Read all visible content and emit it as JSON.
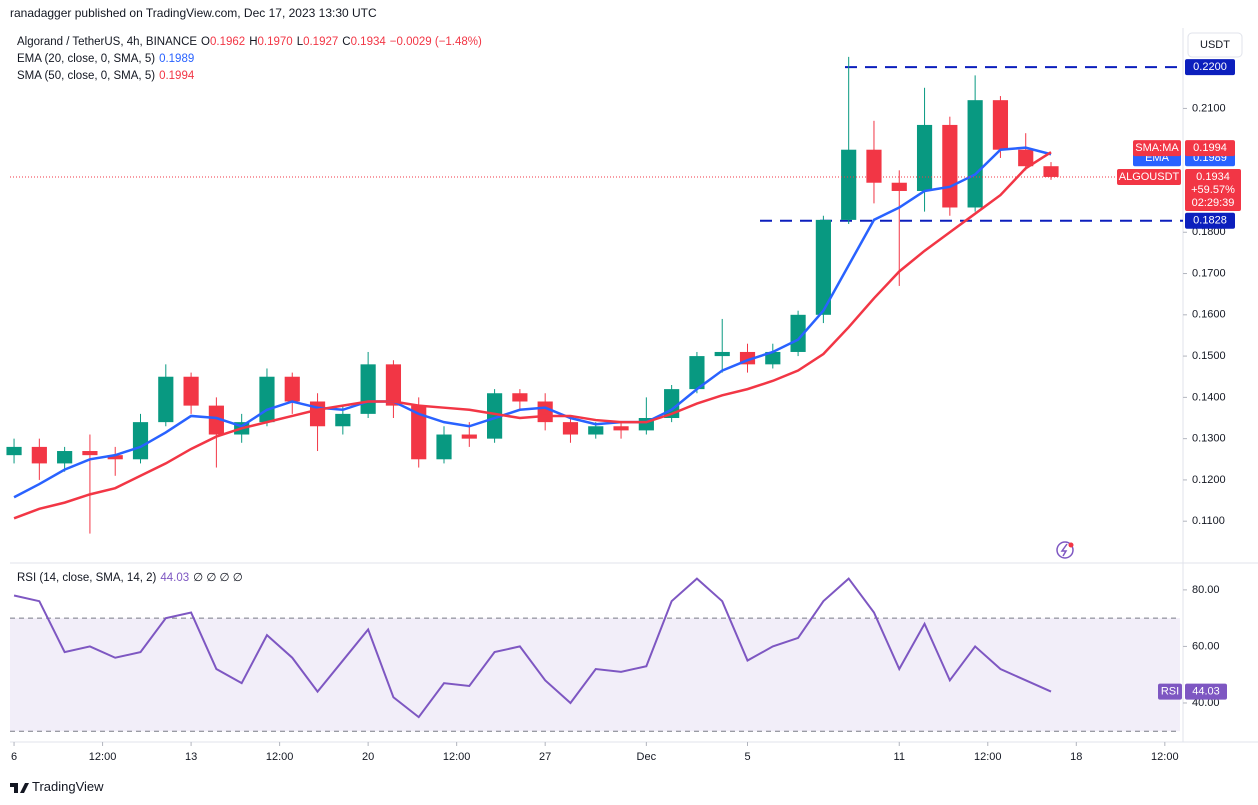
{
  "header": {
    "byline": "ranadagger published on TradingView.com, Dec 17, 2023 13:30 UTC"
  },
  "footer": {
    "brand": "TradingView"
  },
  "chart_data": [
    {
      "type": "candlestick",
      "title": "Algorand / TetherUS, 4h, BINANCE",
      "ohlc_legend": [
        {
          "key": "O",
          "text": "0.1962"
        },
        {
          "key": "H",
          "text": "0.1970"
        },
        {
          "key": "L",
          "text": "0.1927"
        },
        {
          "key": "C",
          "text": "0.1934"
        }
      ],
      "change": "−0.0029 (−1.48%)",
      "currency": "USDT",
      "symbol_tag": "ALGOUSDT",
      "change_pct": "+59.57%",
      "countdown": "02:29:39",
      "up_color": "#089981",
      "down_color": "#f23645",
      "x": [
        0,
        1,
        2,
        3,
        4,
        5,
        6,
        7,
        8,
        9,
        10,
        11,
        12,
        13,
        14,
        15,
        16,
        17,
        18,
        19,
        20,
        21,
        22,
        23,
        24,
        25,
        26,
        27,
        28,
        29,
        30,
        31,
        32,
        33,
        34,
        35,
        36,
        37,
        38,
        39,
        40,
        41
      ],
      "open": [
        0.126,
        0.128,
        0.124,
        0.127,
        0.126,
        0.125,
        0.134,
        0.145,
        0.138,
        0.131,
        0.134,
        0.145,
        0.139,
        0.133,
        0.136,
        0.148,
        0.138,
        0.125,
        0.131,
        0.13,
        0.141,
        0.139,
        0.134,
        0.131,
        0.133,
        0.132,
        0.135,
        0.142,
        0.15,
        0.151,
        0.148,
        0.151,
        0.16,
        0.183,
        0.2,
        0.192,
        0.19,
        0.206,
        0.186,
        0.212,
        0.2,
        0.196
      ],
      "high": [
        0.13,
        0.13,
        0.128,
        0.131,
        0.128,
        0.136,
        0.148,
        0.146,
        0.14,
        0.136,
        0.147,
        0.146,
        0.141,
        0.138,
        0.151,
        0.149,
        0.14,
        0.133,
        0.134,
        0.142,
        0.142,
        0.141,
        0.135,
        0.134,
        0.134,
        0.14,
        0.143,
        0.151,
        0.159,
        0.153,
        0.153,
        0.161,
        0.184,
        0.2225,
        0.207,
        0.195,
        0.215,
        0.208,
        0.218,
        0.213,
        0.204,
        0.197
      ],
      "low": [
        0.124,
        0.12,
        0.122,
        0.107,
        0.121,
        0.124,
        0.133,
        0.136,
        0.123,
        0.129,
        0.133,
        0.136,
        0.127,
        0.131,
        0.135,
        0.135,
        0.123,
        0.124,
        0.128,
        0.129,
        0.137,
        0.132,
        0.129,
        0.13,
        0.13,
        0.131,
        0.134,
        0.141,
        0.146,
        0.146,
        0.147,
        0.15,
        0.158,
        0.182,
        0.187,
        0.167,
        0.185,
        0.184,
        0.185,
        0.198,
        0.195,
        0.1927
      ],
      "close": [
        0.128,
        0.124,
        0.127,
        0.126,
        0.125,
        0.134,
        0.145,
        0.138,
        0.131,
        0.134,
        0.145,
        0.139,
        0.133,
        0.136,
        0.148,
        0.138,
        0.125,
        0.131,
        0.13,
        0.141,
        0.139,
        0.134,
        0.131,
        0.133,
        0.132,
        0.135,
        0.142,
        0.15,
        0.151,
        0.148,
        0.151,
        0.16,
        0.183,
        0.2,
        0.192,
        0.19,
        0.206,
        0.186,
        0.212,
        0.2,
        0.196,
        0.1934
      ],
      "overlays": [
        {
          "name": "EMA (20, close, 0, SMA, 5)",
          "tag": "EMA",
          "color": "#2962ff",
          "values": [
            0.1158,
            0.119,
            0.1225,
            0.125,
            0.126,
            0.128,
            0.1315,
            0.1355,
            0.135,
            0.133,
            0.137,
            0.139,
            0.1375,
            0.137,
            0.139,
            0.139,
            0.136,
            0.134,
            0.133,
            0.135,
            0.137,
            0.1375,
            0.135,
            0.1335,
            0.134,
            0.134,
            0.137,
            0.142,
            0.1465,
            0.149,
            0.151,
            0.154,
            0.161,
            0.172,
            0.183,
            0.186,
            0.19,
            0.191,
            0.194,
            0.2,
            0.2005,
            0.1989
          ]
        },
        {
          "name": "SMA (50, close, 0, SMA, 5)",
          "tag": "SMA:MA",
          "color": "#f23645",
          "values": [
            0.1107,
            0.113,
            0.1145,
            0.1165,
            0.118,
            0.121,
            0.124,
            0.1275,
            0.1305,
            0.1325,
            0.134,
            0.1355,
            0.137,
            0.138,
            0.139,
            0.139,
            0.138,
            0.1375,
            0.137,
            0.136,
            0.135,
            0.1355,
            0.1355,
            0.1345,
            0.134,
            0.134,
            0.136,
            0.1385,
            0.1405,
            0.142,
            0.144,
            0.1465,
            0.1505,
            0.157,
            0.164,
            0.1705,
            0.1755,
            0.18,
            0.1845,
            0.189,
            0.1955,
            0.1994
          ]
        }
      ],
      "levels": [
        {
          "value": 0.22,
          "label": "0.2200"
        },
        {
          "value": 0.1828,
          "label": "0.1828"
        }
      ],
      "xlim": [
        -0.16,
        46.1
      ],
      "ylim": [
        0.1006,
        0.229
      ],
      "xticks": [
        {
          "value": 0,
          "label": "6"
        },
        {
          "value": 3.5,
          "label": "12:00"
        },
        {
          "value": 7,
          "label": "13"
        },
        {
          "value": 10.5,
          "label": "12:00"
        },
        {
          "value": 14,
          "label": "20"
        },
        {
          "value": 17.5,
          "label": "12:00"
        },
        {
          "value": 21,
          "label": "27"
        },
        {
          "value": 25,
          "label": "Dec"
        },
        {
          "value": 29,
          "label": "5"
        },
        {
          "value": 35,
          "label": "11"
        },
        {
          "value": 38.5,
          "label": "12:00"
        },
        {
          "value": 42,
          "label": "18"
        },
        {
          "value": 45.5,
          "label": "12:00"
        }
      ],
      "yticks": [
        {
          "value": 0.11,
          "label": "0.1100"
        },
        {
          "value": 0.12,
          "label": "0.1200"
        },
        {
          "value": 0.13,
          "label": "0.1300"
        },
        {
          "value": 0.14,
          "label": "0.1400"
        },
        {
          "value": 0.15,
          "label": "0.1500"
        },
        {
          "value": 0.16,
          "label": "0.1600"
        },
        {
          "value": 0.17,
          "label": "0.1700"
        },
        {
          "value": 0.18,
          "label": "0.1800"
        },
        {
          "value": 0.21,
          "label": "0.2100"
        }
      ]
    },
    {
      "type": "line",
      "title": "RSI (14, close, SMA, 14, 2)",
      "value_label": "44.03",
      "extras": "∅ ∅ ∅ ∅",
      "tag": "RSI",
      "color": "#7e57c2",
      "values": [
        78,
        76,
        58,
        60,
        56,
        58,
        70,
        72,
        52,
        47,
        64,
        56,
        44,
        55,
        66,
        42,
        35,
        47,
        46,
        58,
        60,
        48,
        40,
        52,
        51,
        53,
        76,
        84,
        76,
        55,
        60,
        63,
        76,
        84,
        72,
        52,
        68,
        48,
        60,
        52,
        48,
        44.03
      ],
      "band": [
        30,
        70
      ],
      "ylim": [
        26.9,
        88.8
      ],
      "yticks": [
        {
          "value": 80,
          "label": "80.00"
        },
        {
          "value": 60,
          "label": "60.00"
        },
        {
          "value": 40,
          "label": "40.00"
        }
      ]
    }
  ]
}
